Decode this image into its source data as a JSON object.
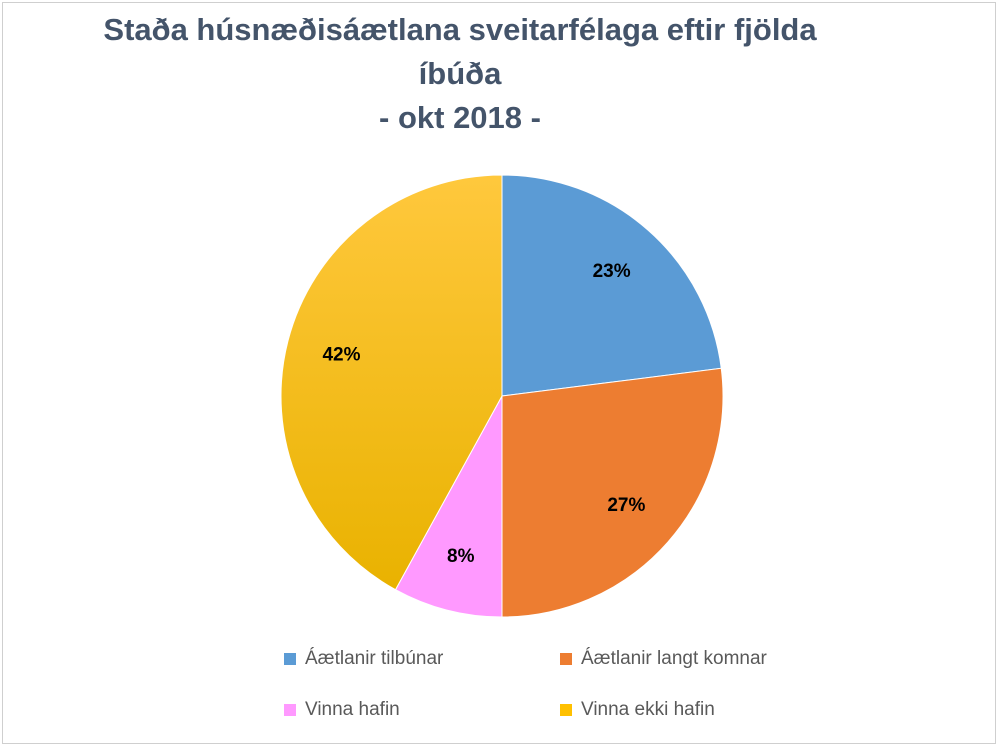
{
  "title_lines": [
    "Staða húsnæðisáætlana sveitarfélaga eftir fjölda",
    "íbúða",
    "- okt 2018 -"
  ],
  "chart_data": {
    "type": "pie",
    "categories": [
      "Áætlanir tilbúnar",
      "Áætlanir langt komnar",
      "Vinna hafin",
      "Vinna ekki hafin"
    ],
    "values": [
      23,
      27,
      8,
      42
    ],
    "value_labels": [
      "23%",
      "27%",
      "8%",
      "42%"
    ],
    "colors": [
      "#5b9bd5",
      "#ed7d31",
      "#ff99ff",
      "#ffc000"
    ],
    "legend_position": "bottom",
    "start_angle": "12 o'clock",
    "direction": "clockwise"
  }
}
